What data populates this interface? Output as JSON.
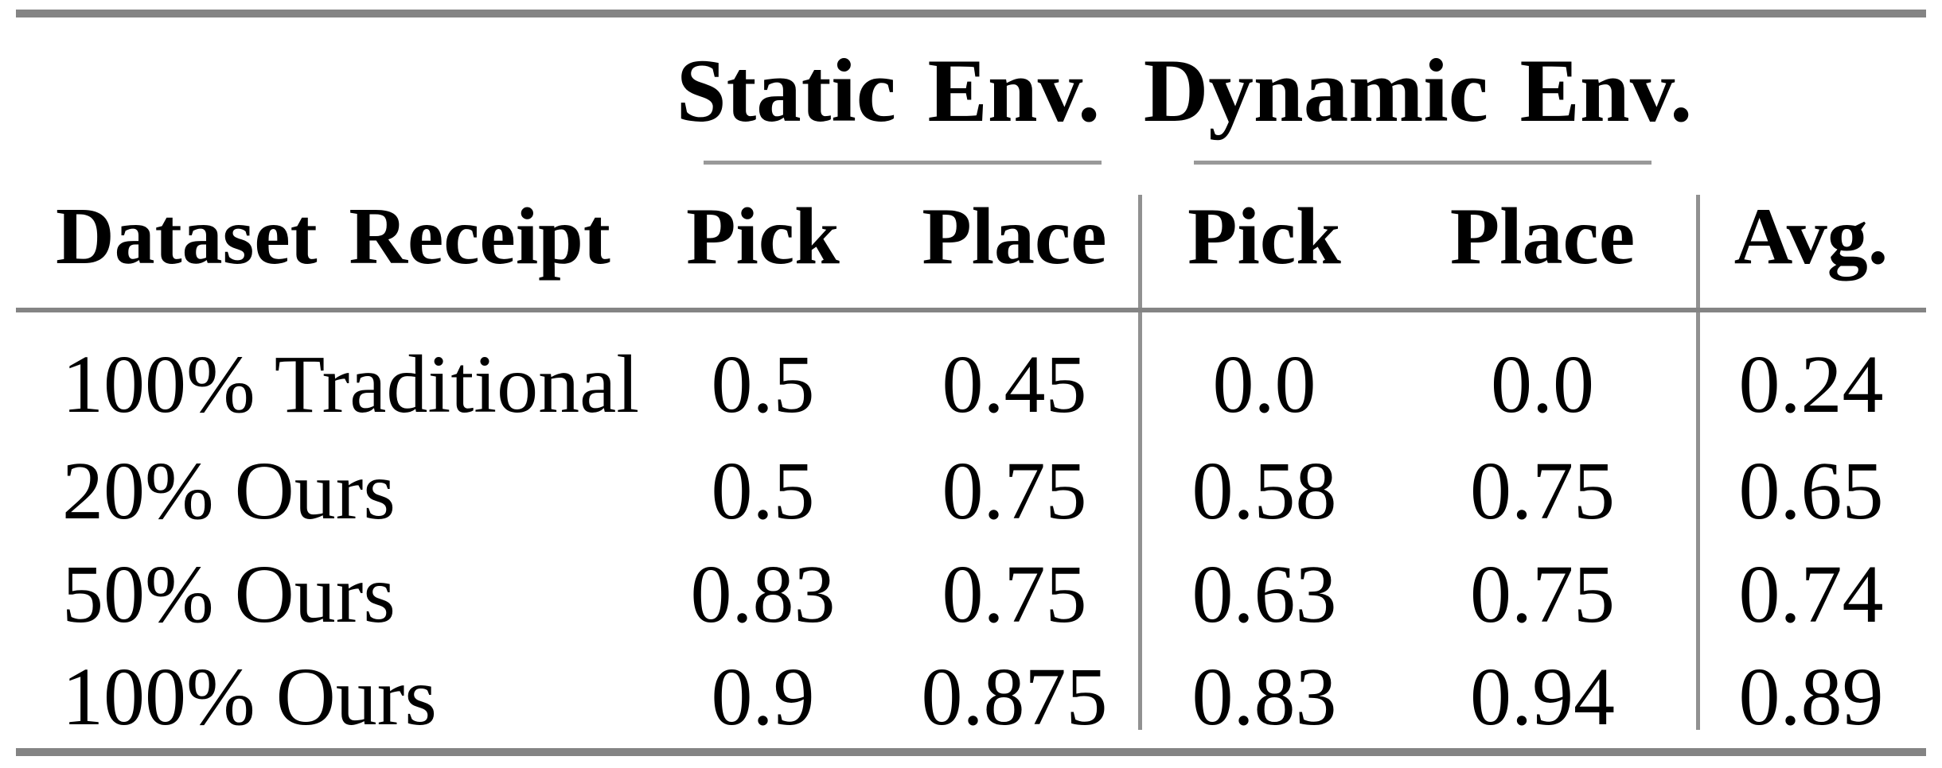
{
  "colors": {
    "background": "#ffffff",
    "text": "#000000",
    "rule_heavy": "#848484",
    "rule_light": "#999999",
    "rule_vertical": "#919191"
  },
  "table": {
    "spanners": [
      {
        "label": "Static Env."
      },
      {
        "label": "Dynamic Env."
      }
    ],
    "columns": [
      "Dataset Receipt",
      "Pick",
      "Place",
      "Pick",
      "Place",
      "Avg."
    ],
    "rows": [
      {
        "label": "100% Traditional",
        "values": [
          "0.5",
          "0.45",
          "0.0",
          "0.0",
          "0.24"
        ]
      },
      {
        "label": "20% Ours",
        "values": [
          "0.5",
          "0.75",
          "0.58",
          "0.75",
          "0.65"
        ]
      },
      {
        "label": "50% Ours",
        "values": [
          "0.83",
          "0.75",
          "0.63",
          "0.75",
          "0.74"
        ]
      },
      {
        "label": "100% Ours",
        "values": [
          "0.9",
          "0.875",
          "0.83",
          "0.94",
          "0.89"
        ]
      }
    ]
  }
}
